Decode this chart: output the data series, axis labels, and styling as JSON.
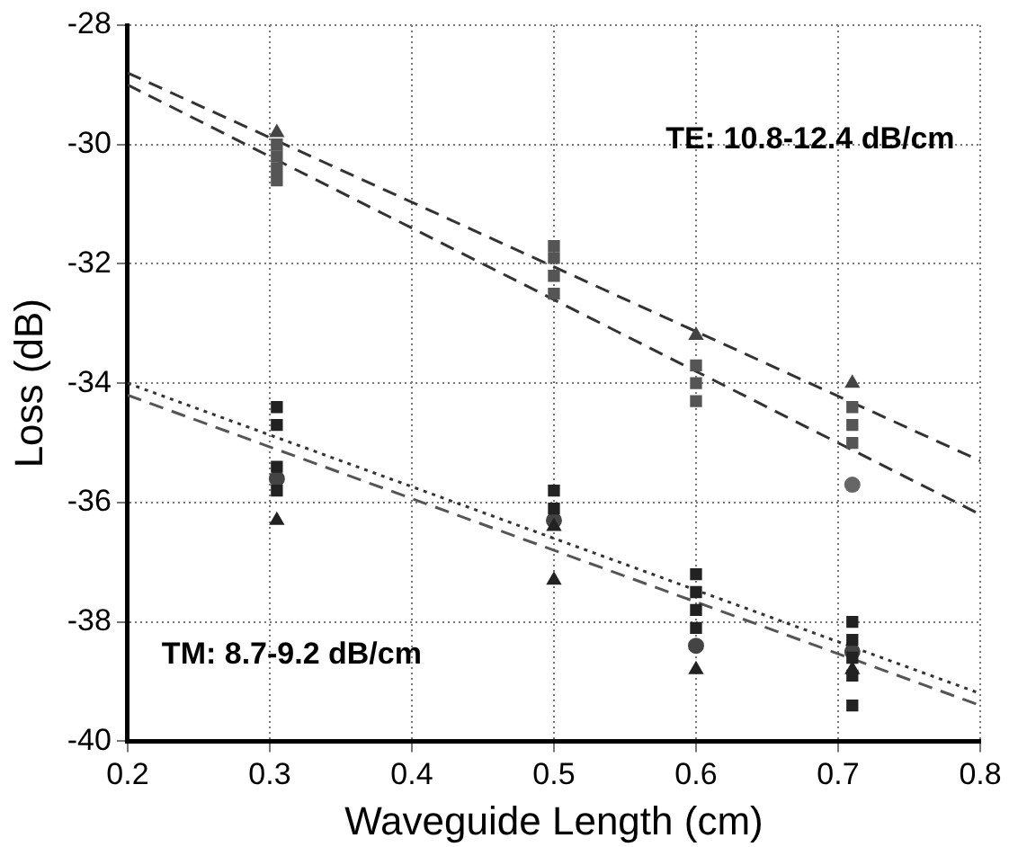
{
  "chart_data": {
    "type": "scatter",
    "xlabel": "Waveguide Length (cm)",
    "ylabel": "Loss (dB)",
    "xlim": [
      0.2,
      0.8
    ],
    "xticks": [
      0.2,
      0.3,
      0.4,
      0.5,
      0.6,
      0.7,
      0.8
    ],
    "ylim": [
      -40,
      -28
    ],
    "yticks": [
      -40,
      -38,
      -36,
      -34,
      -32,
      -30,
      -28
    ],
    "grid": true,
    "legend": false,
    "annotations": [
      "TE: 10.8-12.4 dB/cm",
      "TM: 8.7-9.2 dB/cm"
    ],
    "series": [
      {
        "type": "scatter",
        "marker": "square",
        "color": "#555555",
        "x": [
          0.305,
          0.305,
          0.305,
          0.305,
          0.5,
          0.5,
          0.5,
          0.5,
          0.6,
          0.6,
          0.6,
          0.71,
          0.71,
          0.71
        ],
        "values": [
          -30.0,
          -30.2,
          -30.4,
          -30.6,
          -31.7,
          -31.9,
          -32.2,
          -32.5,
          -33.7,
          -34.0,
          -34.3,
          -34.4,
          -34.7,
          -35.0
        ]
      },
      {
        "type": "scatter",
        "marker": "triangle",
        "color": "#444444",
        "x": [
          0.305,
          0.6,
          0.71
        ],
        "values": [
          -29.8,
          -33.2,
          -34.0
        ]
      },
      {
        "type": "scatter",
        "marker": "circle",
        "color": "#666666",
        "x": [
          0.71
        ],
        "values": [
          -35.7
        ]
      },
      {
        "type": "scatter",
        "marker": "square",
        "color": "#222222",
        "x": [
          0.305,
          0.305,
          0.305,
          0.305,
          0.5,
          0.5,
          0.6,
          0.6,
          0.6,
          0.6,
          0.71,
          0.71,
          0.71,
          0.71,
          0.71
        ],
        "values": [
          -34.4,
          -34.7,
          -35.4,
          -35.8,
          -35.8,
          -36.1,
          -37.2,
          -37.5,
          -37.8,
          -38.1,
          -38.0,
          -38.3,
          -38.6,
          -38.9,
          -39.4
        ]
      },
      {
        "type": "scatter",
        "marker": "triangle",
        "color": "#222222",
        "x": [
          0.305,
          0.5,
          0.5,
          0.6,
          0.71
        ],
        "values": [
          -36.3,
          -36.4,
          -37.3,
          -38.8,
          -38.8
        ]
      },
      {
        "type": "scatter",
        "marker": "circle",
        "color": "#444444",
        "x": [
          0.305,
          0.5,
          0.6,
          0.71
        ],
        "values": [
          -35.6,
          -36.3,
          -38.4,
          -38.5
        ]
      },
      {
        "type": "line",
        "marker": "none",
        "line_style": "dashed",
        "color": "#333333",
        "x": [
          0.2,
          0.8
        ],
        "values": [
          -28.8,
          -35.3
        ]
      },
      {
        "type": "line",
        "marker": "none",
        "line_style": "dashed",
        "color": "#333333",
        "x": [
          0.2,
          0.8
        ],
        "values": [
          -29.0,
          -36.2
        ]
      },
      {
        "type": "line",
        "marker": "none",
        "line_style": "dotted",
        "color": "#333333",
        "x": [
          0.2,
          0.8
        ],
        "values": [
          -34.0,
          -39.2
        ]
      },
      {
        "type": "line",
        "marker": "none",
        "line_style": "dashed",
        "color": "#555555",
        "x": [
          0.2,
          0.8
        ],
        "values": [
          -34.2,
          -39.4
        ]
      }
    ]
  }
}
